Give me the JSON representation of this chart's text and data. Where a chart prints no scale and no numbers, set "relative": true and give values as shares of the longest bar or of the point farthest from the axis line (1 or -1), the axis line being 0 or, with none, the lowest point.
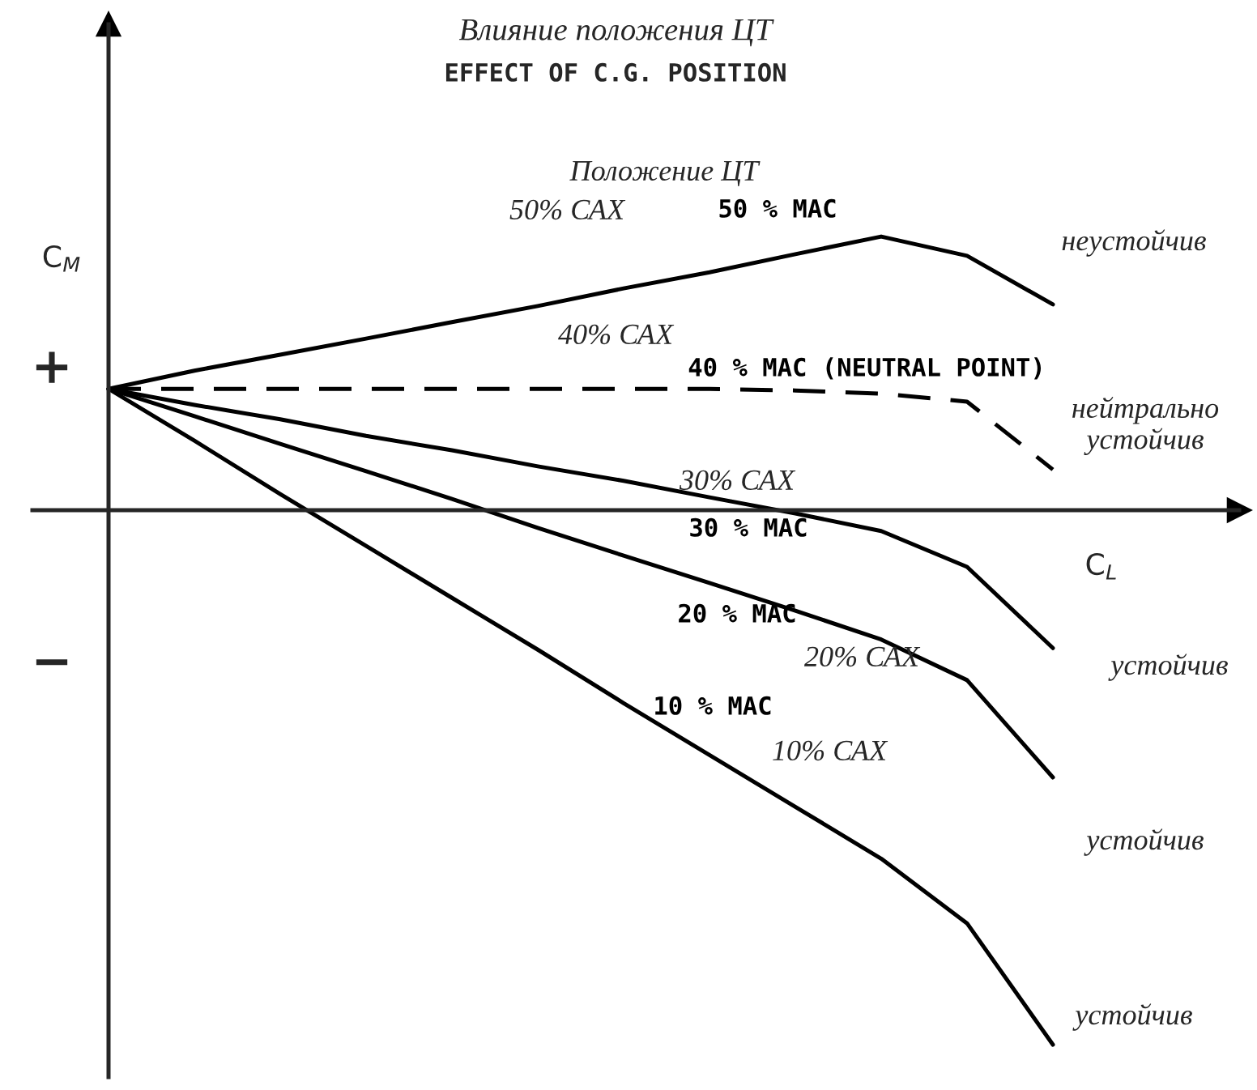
{
  "chart_data": {
    "type": "line",
    "title": "Влияние положения ЦТ",
    "subtitle": "EFFECT OF C.G. POSITION",
    "xlabel": "C$_{L}$",
    "ylabel": "C$_{M}$",
    "relative": true,
    "legend": false,
    "marker": "none",
    "categories": [
      null,
      null,
      null,
      null,
      null,
      null,
      null,
      null,
      null,
      null,
      null,
      null
    ],
    "series": [
      {
        "name": "50 % MAC",
        "color": "#000000",
        "line_style": "solid",
        "values": [
          0.227,
          0.261,
          0.291,
          0.321,
          0.352,
          0.382,
          0.415,
          0.445,
          0.479,
          0.512,
          0.476,
          0.385
        ]
      },
      {
        "name": "40 % MAC (NEUTRAL POINT)",
        "color": "#000000",
        "line_style": "dashed",
        "values": [
          0.227,
          0.227,
          0.227,
          0.227,
          0.227,
          0.227,
          0.227,
          0.227,
          0.224,
          0.218,
          0.203,
          0.076
        ]
      },
      {
        "name": "30 % MAC",
        "color": "#000000",
        "line_style": "solid",
        "values": [
          0.227,
          0.197,
          0.17,
          0.139,
          0.112,
          0.082,
          0.055,
          0.024,
          -0.006,
          -0.039,
          -0.106,
          -0.258
        ]
      },
      {
        "name": "20 % MAC",
        "color": "#000000",
        "line_style": "solid",
        "values": [
          0.227,
          0.176,
          0.124,
          0.073,
          0.021,
          -0.033,
          -0.085,
          -0.136,
          -0.188,
          -0.242,
          -0.318,
          -0.5
        ]
      },
      {
        "name": "10 % MAC",
        "color": "#000000",
        "line_style": "solid",
        "values": [
          0.227,
          0.13,
          0.03,
          -0.067,
          -0.164,
          -0.261,
          -0.361,
          -0.458,
          -0.555,
          -0.652,
          -0.773,
          -1
        ]
      }
    ],
    "annotations": [
      "Положение ЦТ",
      "50% САХ",
      "неустойчив",
      "40% САХ",
      "нейтрально\nустойчив",
      "30% САХ",
      "20% САХ",
      "устойчив",
      "10% САХ",
      "устойчив",
      "устойчив",
      "+",
      "−"
    ]
  }
}
